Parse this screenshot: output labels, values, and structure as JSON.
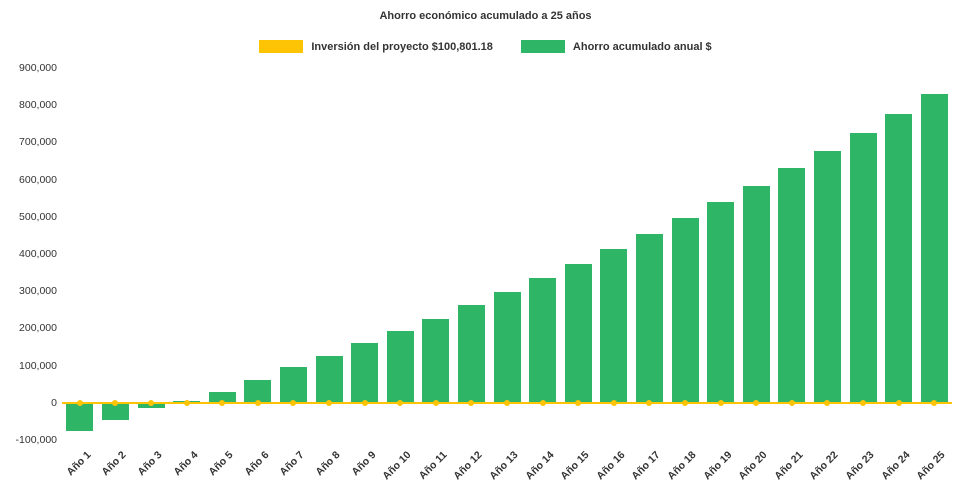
{
  "chart_data": {
    "type": "bar",
    "title": "Ahorro económico acumulado a 25 años",
    "categories": [
      "Año 1",
      "Año 2",
      "Año 3",
      "Año 4",
      "Año 5",
      "Año 6",
      "Año 7",
      "Año 8",
      "Año 9",
      "Año 10",
      "Año 11",
      "Año 12",
      "Año 13",
      "Año 14",
      "Año 15",
      "Año 16",
      "Año 17",
      "Año 18",
      "Año 19",
      "Año 20",
      "Año 21",
      "Año 22",
      "Año 23",
      "Año 24",
      "Año 25"
    ],
    "series": [
      {
        "name": "Inversión del proyecto $100,801.18",
        "type": "line",
        "color": "#fdc305",
        "values": [
          0,
          0,
          0,
          0,
          0,
          0,
          0,
          0,
          0,
          0,
          0,
          0,
          0,
          0,
          0,
          0,
          0,
          0,
          0,
          0,
          0,
          0,
          0,
          0,
          0
        ]
      },
      {
        "name": "Ahorro acumulado anual $",
        "type": "bar",
        "color": "#2fb566",
        "values": [
          -75000,
          -45000,
          -15000,
          5000,
          30000,
          62000,
          95000,
          126000,
          160000,
          193000,
          226000,
          262000,
          298000,
          335000,
          374000,
          413000,
          455000,
          496000,
          540000,
          584000,
          630000,
          676000,
          726000,
          777000,
          830000
        ]
      }
    ],
    "ylim": [
      -100000,
      900000
    ],
    "ytick_step": 100000,
    "grid": false,
    "legend_position": "top",
    "background": "#ffffff"
  }
}
